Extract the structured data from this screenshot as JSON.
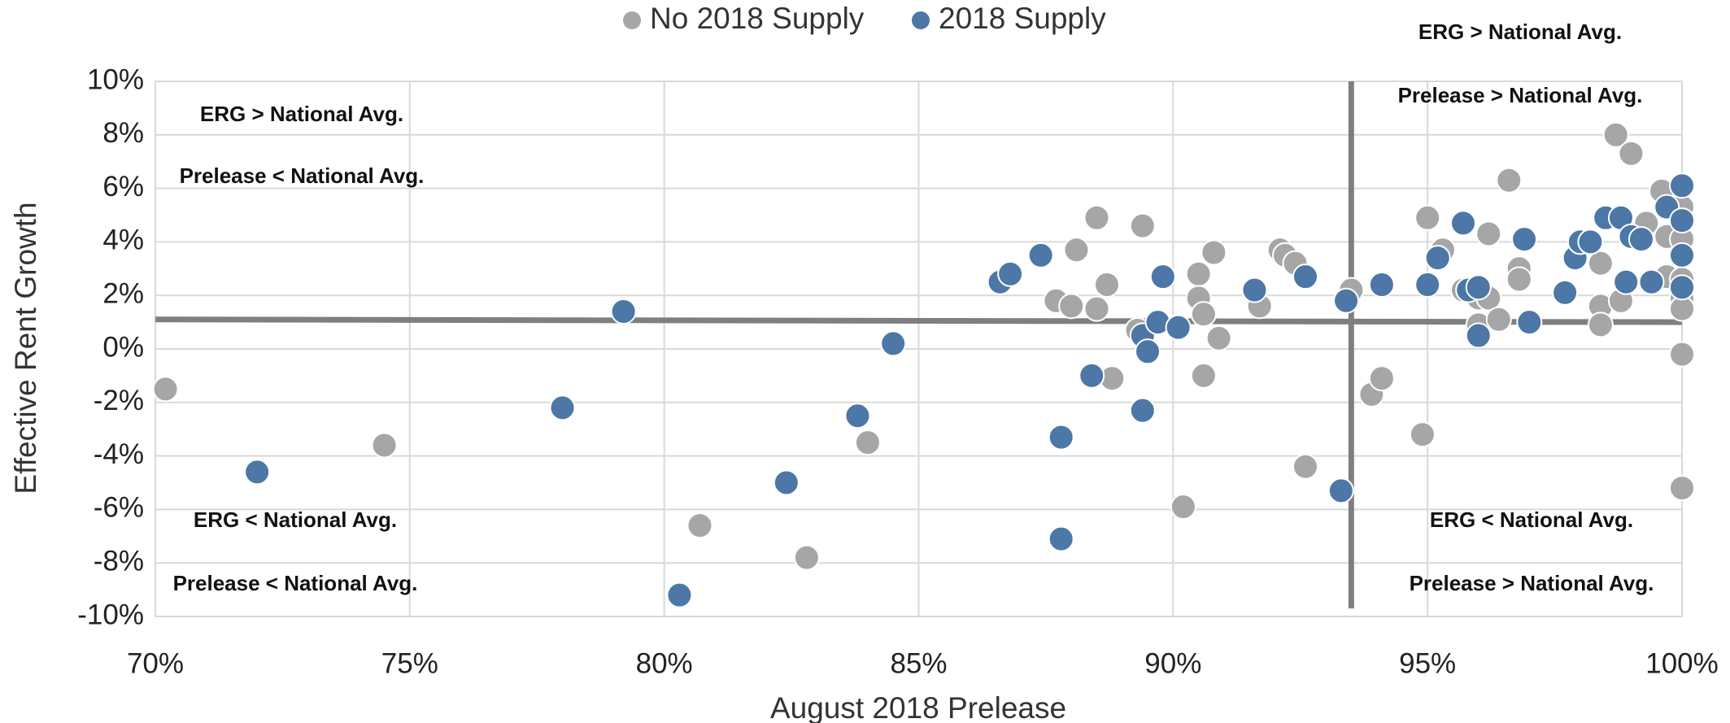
{
  "chart_data": {
    "type": "scatter",
    "x_label": "August 2018 Prelease",
    "y_label": "Effective Rent Growth",
    "xlim": [
      70,
      100
    ],
    "ylim": [
      -10,
      10
    ],
    "xticks": [
      {
        "value": 70,
        "label": "70%"
      },
      {
        "value": 75,
        "label": "75%"
      },
      {
        "value": 80,
        "label": "80%"
      },
      {
        "value": 85,
        "label": "85%"
      },
      {
        "value": 90,
        "label": "90%"
      },
      {
        "value": 95,
        "label": "95%"
      },
      {
        "value": 100,
        "label": "100%"
      }
    ],
    "yticks": [
      {
        "value": -10,
        "label": "-10%"
      },
      {
        "value": -8,
        "label": "-8%"
      },
      {
        "value": -6,
        "label": "-6%"
      },
      {
        "value": -4,
        "label": "-4%"
      },
      {
        "value": -2,
        "label": "-2%"
      },
      {
        "value": 0,
        "label": "0%"
      },
      {
        "value": 2,
        "label": "2%"
      },
      {
        "value": 4,
        "label": "4%"
      },
      {
        "value": 6,
        "label": "6%"
      },
      {
        "value": 8,
        "label": "8%"
      },
      {
        "value": 10,
        "label": "10%"
      }
    ],
    "grid": true,
    "legend": "top",
    "series": [
      {
        "name": "No 2018 Supply",
        "color": "#a6a6a6",
        "x": [
          70.2,
          74.5,
          80.7,
          82.8,
          84.0,
          87.7,
          88.0,
          88.1,
          88.5,
          88.5,
          88.7,
          88.8,
          89.3,
          89.4,
          90.2,
          90.5,
          90.5,
          90.6,
          90.6,
          90.8,
          90.9,
          91.7,
          92.1,
          92.2,
          92.4,
          92.6,
          93.5,
          93.9,
          94.1,
          94.9,
          95.0,
          95.3,
          95.7,
          96.0,
          96.2,
          96.2,
          96.0,
          96.4,
          96.6,
          96.8,
          96.8,
          98.4,
          98.4,
          98.4,
          98.7,
          99.0,
          98.8,
          99.0,
          99.2,
          99.3,
          99.6,
          99.7,
          99.7,
          100,
          100,
          100,
          100,
          100,
          100,
          100
        ],
        "values": [
          -1.5,
          -3.6,
          -6.6,
          -7.8,
          -3.5,
          1.8,
          1.6,
          3.7,
          4.9,
          1.5,
          2.4,
          -1.1,
          0.7,
          4.6,
          -5.9,
          2.8,
          1.9,
          -1.0,
          1.3,
          3.6,
          0.4,
          1.6,
          3.7,
          3.5,
          3.2,
          -4.4,
          2.2,
          -1.7,
          -1.1,
          -3.2,
          4.9,
          3.7,
          2.2,
          1.9,
          4.3,
          1.9,
          0.9,
          1.1,
          6.3,
          3.0,
          2.6,
          3.2,
          1.6,
          0.9,
          8.0,
          7.3,
          1.8,
          4.3,
          4.3,
          4.7,
          5.9,
          4.2,
          2.7,
          5.3,
          4.1,
          2.6,
          1.9,
          1.5,
          -0.2,
          -5.2
        ]
      },
      {
        "name": "2018 Supply",
        "color": "#4c77a6",
        "x": [
          72.0,
          78.0,
          79.2,
          80.3,
          82.4,
          83.8,
          84.5,
          86.6,
          86.8,
          87.4,
          87.8,
          87.8,
          88.4,
          89.4,
          89.4,
          89.5,
          89.7,
          89.8,
          90.1,
          91.6,
          92.6,
          93.3,
          93.4,
          94.1,
          95.0,
          95.2,
          95.7,
          95.8,
          96.0,
          96.0,
          96.9,
          97.0,
          97.7,
          97.9,
          98.0,
          98.2,
          98.5,
          98.8,
          99.0,
          99.2,
          98.9,
          99.4,
          99.7,
          100,
          100,
          100,
          100
        ],
        "values": [
          -4.6,
          -2.2,
          1.4,
          -9.2,
          -5.0,
          -2.5,
          0.2,
          2.5,
          2.8,
          3.5,
          -3.3,
          -7.1,
          -1.0,
          0.5,
          -2.3,
          -0.1,
          1.0,
          2.7,
          0.8,
          2.2,
          2.7,
          -5.3,
          1.8,
          2.4,
          2.4,
          3.4,
          4.7,
          2.2,
          2.3,
          0.5,
          4.1,
          1.0,
          2.1,
          3.4,
          4.0,
          4.0,
          4.9,
          4.9,
          4.2,
          4.1,
          2.5,
          2.5,
          5.3,
          6.1,
          4.8,
          3.5,
          2.3
        ]
      }
    ],
    "reference_lines": [
      {
        "x": [
          70,
          100
        ],
        "values": [
          1.1,
          1.0
        ]
      },
      {
        "x": [
          93.5,
          93.5
        ],
        "values": [
          10,
          -9.7
        ]
      }
    ],
    "annotations": [
      "ERG > National Avg.",
      "Prelease < National Avg.",
      "ERG < National Avg.",
      "Prelease < National Avg.",
      "ERG > National Avg.",
      "Prelease > National Avg.",
      "ERG < National Avg.",
      "Prelease > National Avg."
    ]
  }
}
